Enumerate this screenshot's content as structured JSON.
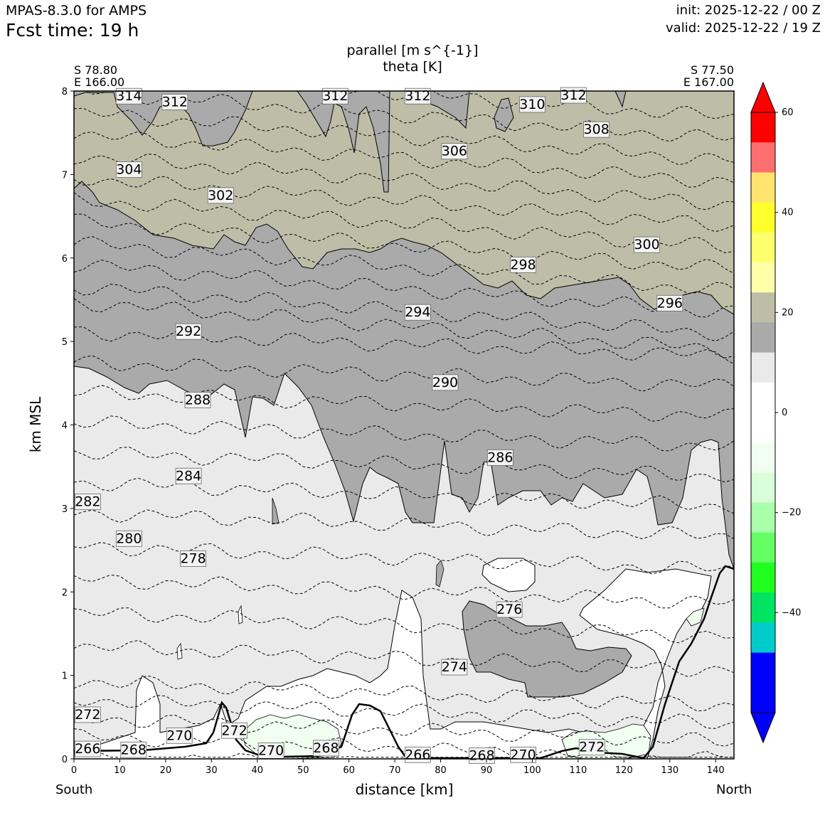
{
  "header": {
    "model": "MPAS-8.3.0 for AMPS",
    "fcst_time": "Fcst time:   19 h",
    "init": "init: 2025-12-22 / 00 Z",
    "valid": "valid: 2025-12-22 / 19 Z"
  },
  "chart_data": {
    "type": "heatmap",
    "title": "parallel [m s^{-1}]",
    "subtitle": "theta [K]",
    "xlabel": "distance [km]",
    "ylabel": "km MSL",
    "xlim": [
      0,
      144
    ],
    "ylim": [
      0,
      8
    ],
    "x_ticks": [
      "0",
      "10",
      "20",
      "30",
      "40",
      "50",
      "60",
      "70",
      "80",
      "90",
      "100",
      "110",
      "120",
      "130",
      "140"
    ],
    "y_ticks": [
      "0",
      "1",
      "2",
      "3",
      "4",
      "5",
      "6",
      "7",
      "8"
    ],
    "endpoints": {
      "start": [
        "S 78.80",
        "E 166.00"
      ],
      "end": [
        "S 77.50",
        "E 167.00"
      ],
      "left_label": "South",
      "right_label": "North"
    },
    "colorbar": {
      "tick_labels": [
        "60",
        "40",
        "20",
        "0",
        "−20",
        "−40"
      ],
      "tick_values": [
        60,
        40,
        20,
        0,
        -20,
        -40
      ],
      "range": [
        -60,
        60
      ],
      "colors": [
        "#ff0000",
        "#ff6e6e",
        "#ffe36e",
        "#ffff2d",
        "#ffff6e",
        "#ffffaa",
        "#bebea8",
        "#aaaaaa",
        "#eaeaea",
        "#ffffff",
        "#ffffff",
        "#f0fff0",
        "#d9ffd9",
        "#aaffaa",
        "#63ff63",
        "#1eff1e",
        "#00e363",
        "#00cccc",
        "#0000ff",
        "#0000ff"
      ]
    },
    "theta_isotherms": [
      {
        "label": "314",
        "value": 314,
        "x": 12,
        "z": 7.93
      },
      {
        "label": "312",
        "value": 312,
        "x": 22,
        "z": 7.86
      },
      {
        "label": "312",
        "value": 312,
        "x": 57,
        "z": 7.93
      },
      {
        "label": "312",
        "value": 312,
        "x": 75,
        "z": 7.93
      },
      {
        "label": "312",
        "value": 312,
        "x": 109,
        "z": 7.94
      },
      {
        "label": "310",
        "value": 310,
        "x": 100,
        "z": 7.83
      },
      {
        "label": "308",
        "value": 308,
        "x": 114,
        "z": 7.53
      },
      {
        "label": "306",
        "value": 306,
        "x": 83,
        "z": 7.27
      },
      {
        "label": "304",
        "value": 304,
        "x": 12,
        "z": 7.05
      },
      {
        "label": "302",
        "value": 302,
        "x": 32,
        "z": 6.74
      },
      {
        "label": "300",
        "value": 300,
        "x": 125,
        "z": 6.15
      },
      {
        "label": "298",
        "value": 298,
        "x": 98,
        "z": 5.91
      },
      {
        "label": "296",
        "value": 296,
        "x": 130,
        "z": 5.45
      },
      {
        "label": "294",
        "value": 294,
        "x": 75,
        "z": 5.34
      },
      {
        "label": "292",
        "value": 292,
        "x": 25,
        "z": 5.11
      },
      {
        "label": "290",
        "value": 290,
        "x": 81,
        "z": 4.5
      },
      {
        "label": "288",
        "value": 288,
        "x": 27,
        "z": 4.29
      },
      {
        "label": "286",
        "value": 286,
        "x": 93,
        "z": 3.6
      },
      {
        "label": "284",
        "value": 284,
        "x": 25,
        "z": 3.38
      },
      {
        "label": "282",
        "value": 282,
        "x": 3,
        "z": 3.07
      },
      {
        "label": "280",
        "value": 280,
        "x": 12,
        "z": 2.63
      },
      {
        "label": "278",
        "value": 278,
        "x": 26,
        "z": 2.39
      },
      {
        "label": "276",
        "value": 276,
        "x": 95,
        "z": 1.78
      },
      {
        "label": "274",
        "value": 274,
        "x": 83,
        "z": 1.09
      },
      {
        "label": "272",
        "value": 272,
        "x": 3,
        "z": 0.52
      },
      {
        "label": "272",
        "value": 272,
        "x": 35,
        "z": 0.33
      },
      {
        "label": "272",
        "value": 272,
        "x": 113,
        "z": 0.13
      },
      {
        "label": "270",
        "value": 270,
        "x": 23,
        "z": 0.27
      },
      {
        "label": "270",
        "value": 270,
        "x": 43,
        "z": 0.09
      },
      {
        "label": "270",
        "value": 270,
        "x": 98,
        "z": 0.04
      },
      {
        "label": "268",
        "value": 268,
        "x": 13,
        "z": 0.1
      },
      {
        "label": "268",
        "value": 268,
        "x": 55,
        "z": 0.12
      },
      {
        "label": "268",
        "value": 268,
        "x": 89,
        "z": 0.03
      },
      {
        "label": "266",
        "value": 266,
        "x": 3,
        "z": 0.11
      },
      {
        "label": "266",
        "value": 266,
        "x": 75,
        "z": 0.04
      }
    ]
  }
}
